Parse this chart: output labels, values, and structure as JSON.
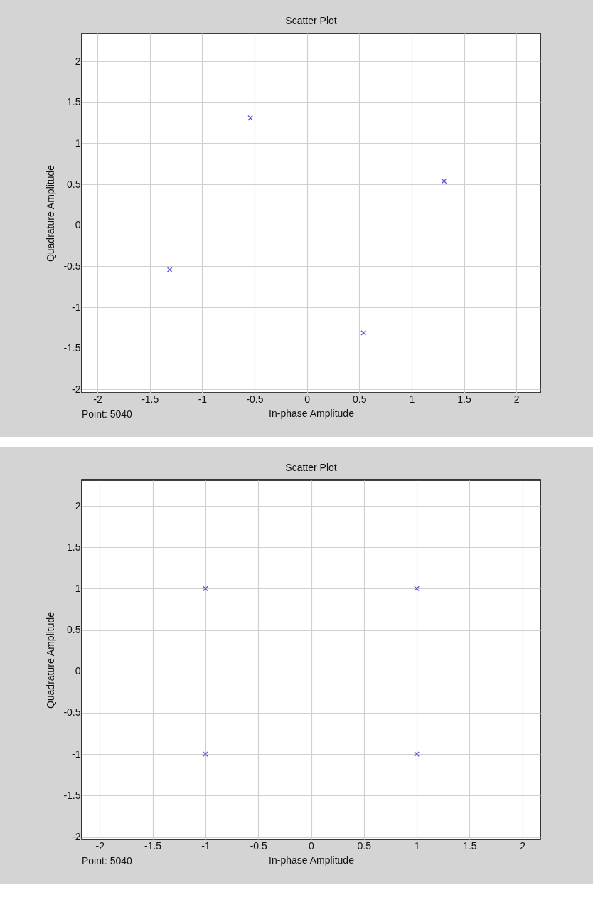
{
  "chart_data": [
    {
      "type": "scatter",
      "title": "Scatter Plot",
      "xlabel": "In-phase Amplitude",
      "ylabel": "Quadrature Amplitude",
      "annotations": [
        "Point: 5040"
      ],
      "x": [
        -0.54,
        1.31,
        -1.31,
        0.54
      ],
      "series": [
        {
          "color": "#5a5ae6",
          "values": [
            1.31,
            0.54,
            -0.54,
            -1.31
          ]
        }
      ],
      "xlim": [
        -2.15,
        2.23
      ],
      "ylim": [
        -2.04,
        2.34
      ],
      "xticks": [
        -2,
        -1.5,
        -1,
        -0.5,
        0,
        0.5,
        1,
        1.5,
        2
      ],
      "yticks": [
        -2,
        -1.5,
        -1,
        -0.5,
        0,
        0.5,
        1,
        1.5,
        2
      ],
      "grid": true,
      "marker": "cross"
    },
    {
      "type": "scatter",
      "title": "Scatter Plot",
      "xlabel": "In-phase Amplitude",
      "ylabel": "Quadrature Amplitude",
      "annotations": [
        "Point: 5040"
      ],
      "x": [
        -1,
        1,
        -1,
        1
      ],
      "series": [
        {
          "color": "#5a5ae6",
          "values": [
            1,
            1,
            -1,
            -1
          ]
        }
      ],
      "xlim": [
        -2.17,
        2.17
      ],
      "ylim": [
        -2.03,
        2.31
      ],
      "xticks": [
        -2,
        -1.5,
        -1,
        -0.5,
        0,
        0.5,
        1,
        1.5,
        2
      ],
      "yticks": [
        -2,
        -1.5,
        -1,
        -0.5,
        0,
        0.5,
        1,
        1.5,
        2
      ],
      "grid": true,
      "marker": "cross"
    }
  ]
}
